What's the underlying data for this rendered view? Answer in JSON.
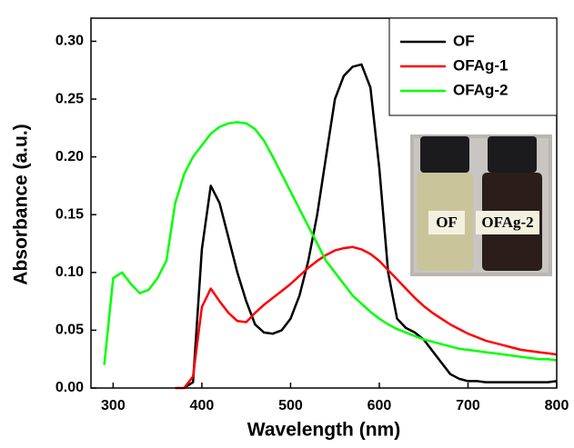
{
  "chart_data": {
    "type": "line",
    "xlabel": "Wavelength (nm)",
    "ylabel": "Absorbance (a.u.)",
    "x": [
      280,
      290,
      300,
      310,
      320,
      330,
      340,
      350,
      360,
      370,
      380,
      390,
      400,
      410,
      420,
      430,
      440,
      450,
      460,
      470,
      480,
      490,
      500,
      510,
      520,
      530,
      540,
      550,
      560,
      570,
      580,
      590,
      600,
      610,
      620,
      630,
      640,
      650,
      660,
      670,
      680,
      690,
      700,
      710,
      720,
      730,
      740,
      750,
      760,
      770,
      780,
      790,
      800
    ],
    "series": [
      {
        "name": "OF",
        "color": "#000000",
        "values": [
          null,
          null,
          null,
          null,
          null,
          null,
          null,
          null,
          null,
          null,
          0.0,
          0.005,
          0.12,
          0.175,
          0.16,
          0.13,
          0.1,
          0.075,
          0.055,
          0.048,
          0.047,
          0.05,
          0.06,
          0.08,
          0.11,
          0.15,
          0.2,
          0.25,
          0.27,
          0.278,
          0.28,
          0.26,
          0.19,
          0.1,
          0.06,
          0.052,
          0.048,
          0.042,
          0.032,
          0.022,
          0.012,
          0.008,
          0.006,
          0.006,
          0.005,
          0.005,
          0.005,
          0.005,
          0.005,
          0.005,
          0.005,
          0.005,
          0.006
        ]
      },
      {
        "name": "OFAg-1",
        "color": "#ff0000",
        "values": [
          null,
          null,
          null,
          null,
          null,
          null,
          null,
          null,
          null,
          0.0,
          0.0,
          0.01,
          0.07,
          0.086,
          0.075,
          0.065,
          0.058,
          0.057,
          0.065,
          0.072,
          0.078,
          0.084,
          0.09,
          0.097,
          0.104,
          0.11,
          0.115,
          0.119,
          0.121,
          0.122,
          0.12,
          0.116,
          0.11,
          0.102,
          0.094,
          0.086,
          0.078,
          0.071,
          0.065,
          0.06,
          0.055,
          0.051,
          0.047,
          0.044,
          0.041,
          0.039,
          0.037,
          0.035,
          0.033,
          0.032,
          0.031,
          0.03,
          0.029
        ]
      },
      {
        "name": "OFAg-2",
        "color": "#00ff00",
        "values": [
          null,
          0.02,
          0.095,
          0.1,
          0.09,
          0.082,
          0.085,
          0.095,
          0.11,
          0.16,
          0.185,
          0.2,
          0.21,
          0.22,
          0.226,
          0.229,
          0.23,
          0.229,
          0.224,
          0.214,
          0.2,
          0.185,
          0.17,
          0.155,
          0.14,
          0.125,
          0.11,
          0.1,
          0.09,
          0.08,
          0.073,
          0.066,
          0.06,
          0.055,
          0.051,
          0.048,
          0.045,
          0.042,
          0.04,
          0.038,
          0.036,
          0.034,
          0.033,
          0.032,
          0.031,
          0.03,
          0.029,
          0.028,
          0.027,
          0.026,
          0.025,
          0.025,
          0.024
        ]
      }
    ],
    "xlim": [
      275,
      800
    ],
    "ylim": [
      0,
      0.32
    ],
    "xticks": [
      300,
      400,
      500,
      600,
      700,
      800
    ],
    "yticks": [
      {
        "value": 0,
        "label": "0.00"
      },
      0.05,
      {
        "value": 0.1,
        "label": "0.10"
      },
      0.15,
      {
        "value": 0.2,
        "label": "0.20"
      },
      0.25,
      {
        "value": 0.3,
        "label": "0.30"
      }
    ],
    "legend": "upper right",
    "annotations": [
      "OF",
      "OFAg-2"
    ]
  }
}
